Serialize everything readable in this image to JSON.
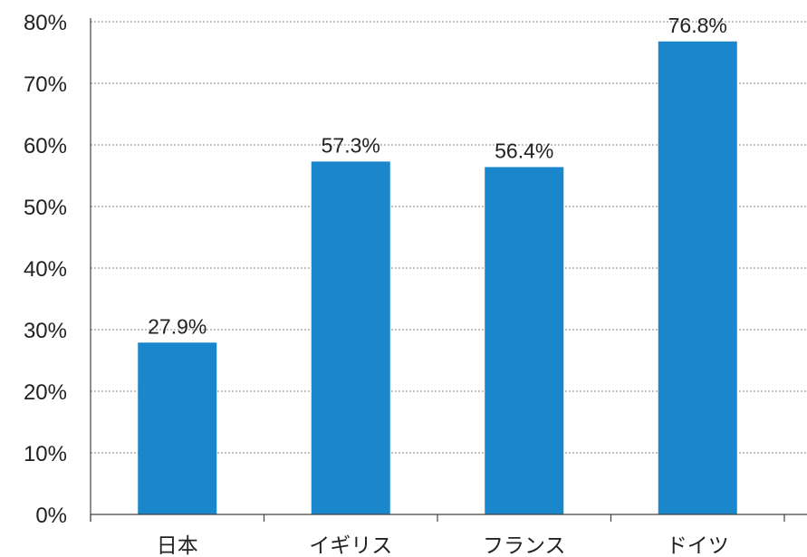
{
  "chart_data": {
    "type": "bar",
    "categories": [
      "日本",
      "イギリス",
      "フランス",
      "ドイツ"
    ],
    "values": [
      27.9,
      57.3,
      56.4,
      76.8
    ],
    "data_labels": [
      "27.9%",
      "57.3%",
      "56.4%",
      "76.8%"
    ],
    "y_ticks": [
      "0%",
      "10%",
      "20%",
      "30%",
      "40%",
      "50%",
      "60%",
      "70%",
      "80%"
    ],
    "ylim": [
      0,
      80
    ],
    "grid": true,
    "bar_color": "#1a86cc",
    "title": "",
    "xlabel": "",
    "ylabel": ""
  }
}
